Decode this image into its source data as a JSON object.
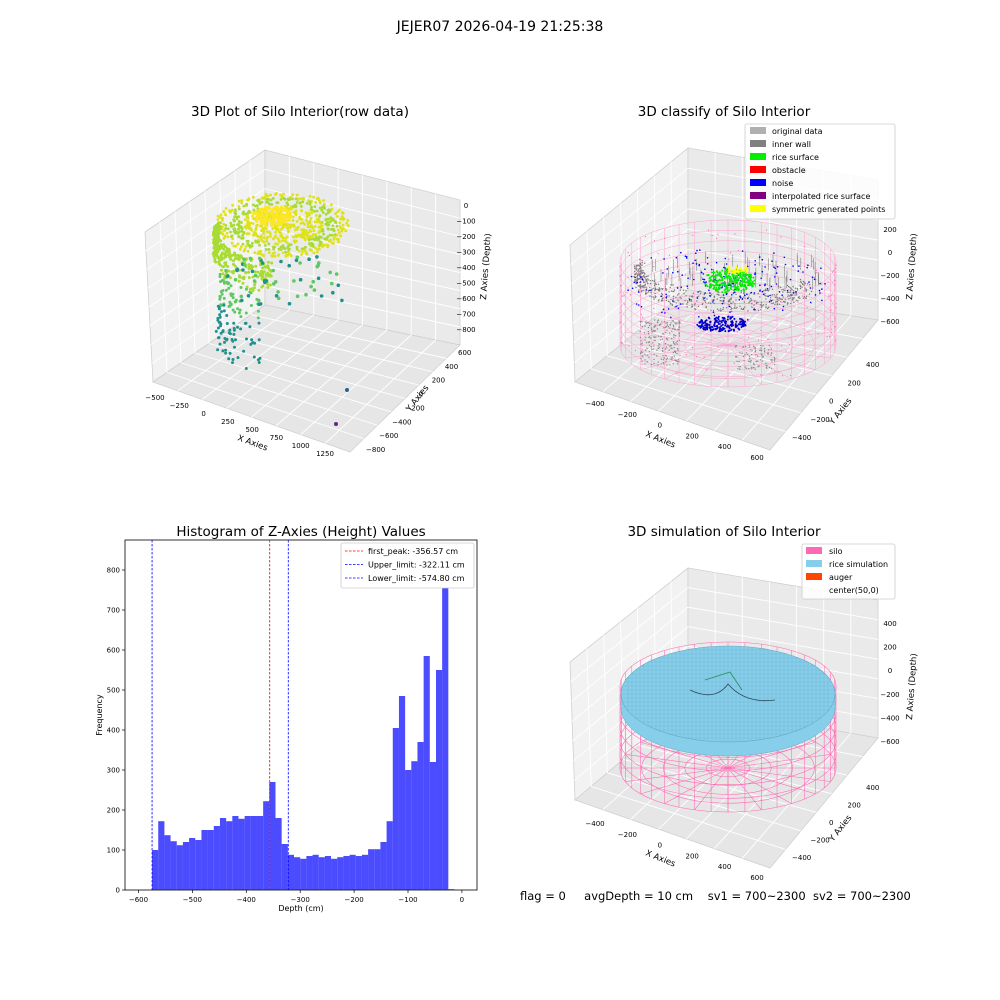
{
  "figure": {
    "suptitle": "JEJER07 2026-04-19 21:25:38"
  },
  "panel1": {
    "title": "3D Plot of Silo Interior(row data)",
    "xlabel": "X Axies",
    "ylabel": "Y Axies",
    "zlabel": "Z Axies (Depth)",
    "xticks": [
      "−500",
      "−250",
      "0",
      "250",
      "500",
      "750",
      "1000",
      "1250"
    ],
    "yticks": [
      "−800",
      "−600",
      "−400",
      "−200",
      "0",
      "200",
      "400",
      "600"
    ],
    "zticks": [
      "0",
      "−100",
      "−200",
      "−300",
      "−400",
      "−500",
      "−600",
      "−700",
      "−800"
    ]
  },
  "panel2": {
    "title": "3D classify of Silo Interior",
    "xlabel": "X Axies",
    "ylabel": "Y Axies",
    "zlabel": "Z Axies (Depth)",
    "xticks": [
      "−400",
      "−200",
      "0",
      "200",
      "400",
      "600"
    ],
    "yticks": [
      "−400",
      "−200",
      "0",
      "200",
      "400"
    ],
    "zticks": [
      "200",
      "0",
      "−200",
      "−400",
      "−600"
    ],
    "legend": [
      {
        "label": "original data",
        "color": "#b0b0b0"
      },
      {
        "label": "inner wall",
        "color": "#808080"
      },
      {
        "label": "rice surface",
        "color": "#00ee00"
      },
      {
        "label": "obstacle",
        "color": "#ff0000"
      },
      {
        "label": "noise",
        "color": "#0000ff"
      },
      {
        "label": "interpolated rice surface",
        "color": "#800080"
      },
      {
        "label": "symmetric generated points",
        "color": "#ffff00"
      }
    ]
  },
  "panel4": {
    "title": "3D simulation of Silo Interior",
    "xlabel": "X Axies",
    "ylabel": "Y Axies",
    "zlabel": "Z Axies (Depth)",
    "xticks": [
      "−400",
      "−200",
      "0",
      "200",
      "400",
      "600"
    ],
    "yticks": [
      "−400",
      "−200",
      "0",
      "200",
      "400"
    ],
    "zticks": [
      "400",
      "200",
      "0",
      "−200",
      "−400",
      "−600"
    ],
    "legend": [
      {
        "label": "silo",
        "color": "#ff69b4"
      },
      {
        "label": "rice simulation",
        "color": "#87ceeb"
      },
      {
        "label": "auger",
        "color": "#ff4500"
      },
      {
        "label": "center(50,0)",
        "color": ""
      }
    ]
  },
  "footer": {
    "flag": "flag = 0",
    "avg": "avgDepth = 10 cm",
    "sv1": "sv1 = 700~2300",
    "sv2": "sv2 = 700~2300"
  },
  "chart_data": [
    {
      "type": "histogram",
      "title": "Histogram of Z-Axies (Height) Values",
      "xlabel": "Depth (cm)",
      "ylabel": "Frequency",
      "xlim": [
        -625,
        28
      ],
      "ylim": [
        0,
        875
      ],
      "xticks": [
        -600,
        -500,
        -400,
        -300,
        -200,
        -100,
        0
      ],
      "yticks": [
        0,
        100,
        200,
        300,
        400,
        500,
        600,
        700,
        800
      ],
      "bar_color": "#0000ff",
      "bin_start": -574.8,
      "bin_width": 11.45,
      "values": [
        100,
        172,
        137,
        122,
        112,
        120,
        130,
        125,
        150,
        150,
        160,
        180,
        172,
        185,
        178,
        185,
        185,
        185,
        222,
        270,
        180,
        115,
        88,
        82,
        78,
        85,
        88,
        82,
        85,
        78,
        82,
        85,
        88,
        85,
        88,
        102,
        102,
        120,
        172,
        405,
        485,
        300,
        322,
        370,
        585,
        320,
        550,
        825,
        2
      ],
      "lines": [
        {
          "label": "first_peak: -356.57 cm",
          "x": -356.57,
          "color": "#ff0000"
        },
        {
          "label": "Upper_limit: -322.11 cm",
          "x": -322.11,
          "color": "#0000ff"
        },
        {
          "label": "Lower_limit: -574.80 cm",
          "x": -574.8,
          "color": "#0000ff"
        }
      ],
      "legend_position": "top-right"
    }
  ]
}
